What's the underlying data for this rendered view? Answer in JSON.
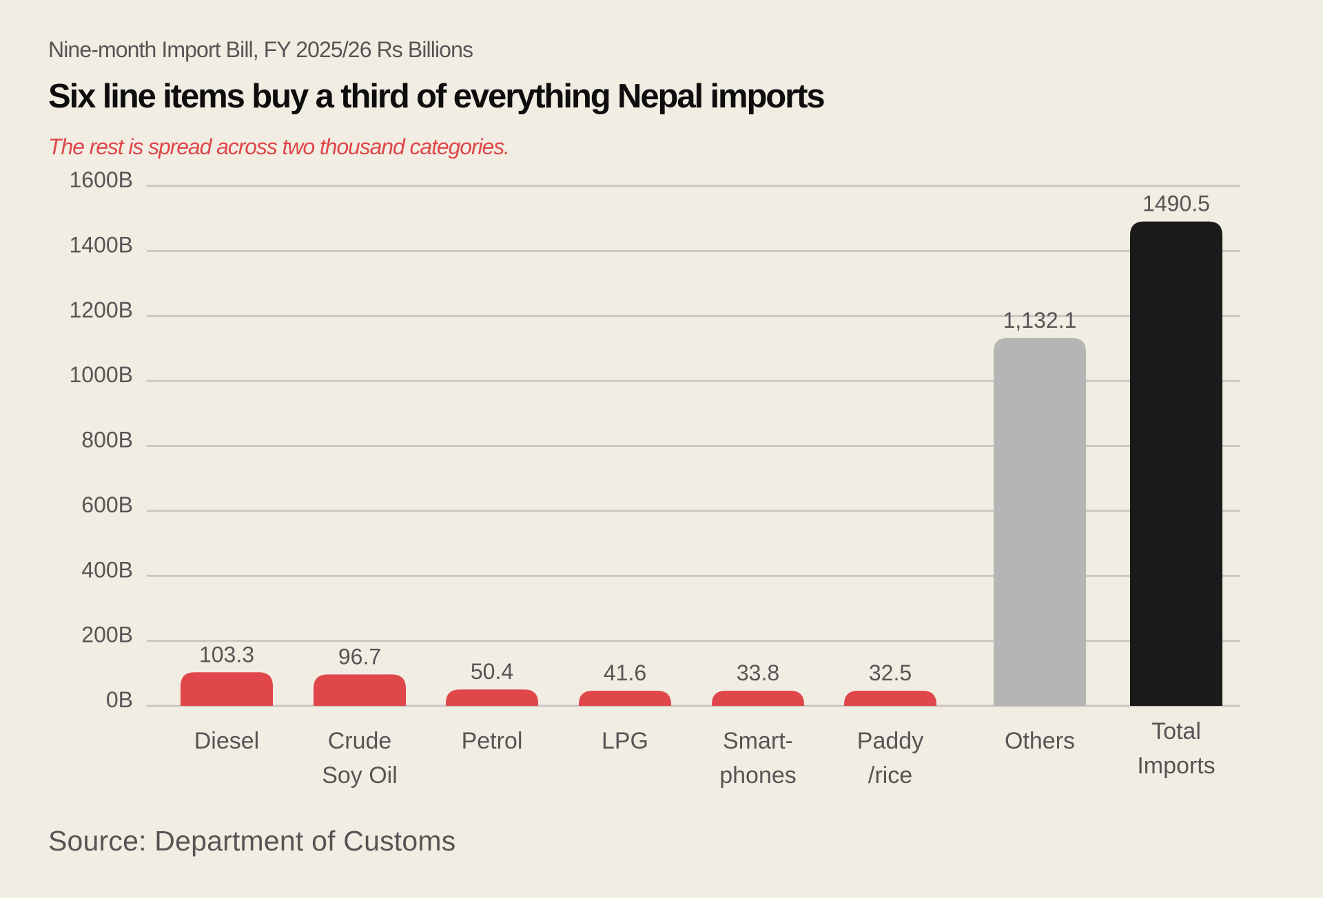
{
  "header": {
    "kicker": "Nine-month Import Bill, FY 2025/26 Rs Billions",
    "title": "Six line items buy a third of everything Nepal imports",
    "tagline": "The rest is spread across two thousand categories."
  },
  "footer": {
    "source": "Source: Department of Customs"
  },
  "colors": {
    "background": "#f1ede3",
    "highlight": "#e0474a",
    "others": "#b5b5b5",
    "total": "#1a1a1a",
    "gridline": "#ccc6c4",
    "text": "#555555"
  },
  "chart_data": {
    "type": "bar",
    "title": "Six line items buy a third of everything Nepal imports",
    "subtitle": "The rest is spread across two thousand categories.",
    "unit_label": "Nine-month Import Bill, FY 2025/26 Rs Billions",
    "xlabel": "",
    "ylabel": "",
    "ylim": [
      0,
      1600
    ],
    "grid": true,
    "legend": "none",
    "yticks": [
      {
        "value": 1600,
        "label": "1600B"
      },
      {
        "value": 1400,
        "label": "1400B"
      },
      {
        "value": 1200,
        "label": "1200B"
      },
      {
        "value": 1000,
        "label": "1000B"
      },
      {
        "value": 800,
        "label": "800B"
      },
      {
        "value": 600,
        "label": "600B"
      },
      {
        "value": 400,
        "label": "400B"
      },
      {
        "value": 200,
        "label": "200B"
      },
      {
        "value": 0,
        "label": "0B"
      }
    ],
    "categories": [
      {
        "lines": [
          "Diesel"
        ],
        "value": 103.3,
        "label": "103.3",
        "group": "highlight"
      },
      {
        "lines": [
          "Crude",
          "Soy Oil"
        ],
        "value": 96.7,
        "label": "96.7",
        "group": "highlight"
      },
      {
        "lines": [
          "Petrol"
        ],
        "value": 50.4,
        "label": "50.4",
        "group": "highlight"
      },
      {
        "lines": [
          "LPG"
        ],
        "value": 41.6,
        "label": "41.6",
        "group": "highlight"
      },
      {
        "lines": [
          "Smart-",
          "phones"
        ],
        "value": 33.8,
        "label": "33.8",
        "group": "highlight"
      },
      {
        "lines": [
          "Paddy",
          "/rice"
        ],
        "value": 32.5,
        "label": "32.5",
        "group": "highlight"
      },
      {
        "lines": [
          "Others"
        ],
        "value": 1132.1,
        "label": "1,132.1",
        "group": "others"
      },
      {
        "lines": [
          "Total",
          "Imports"
        ],
        "value": 1490.5,
        "label": "1490.5",
        "group": "total"
      }
    ]
  }
}
